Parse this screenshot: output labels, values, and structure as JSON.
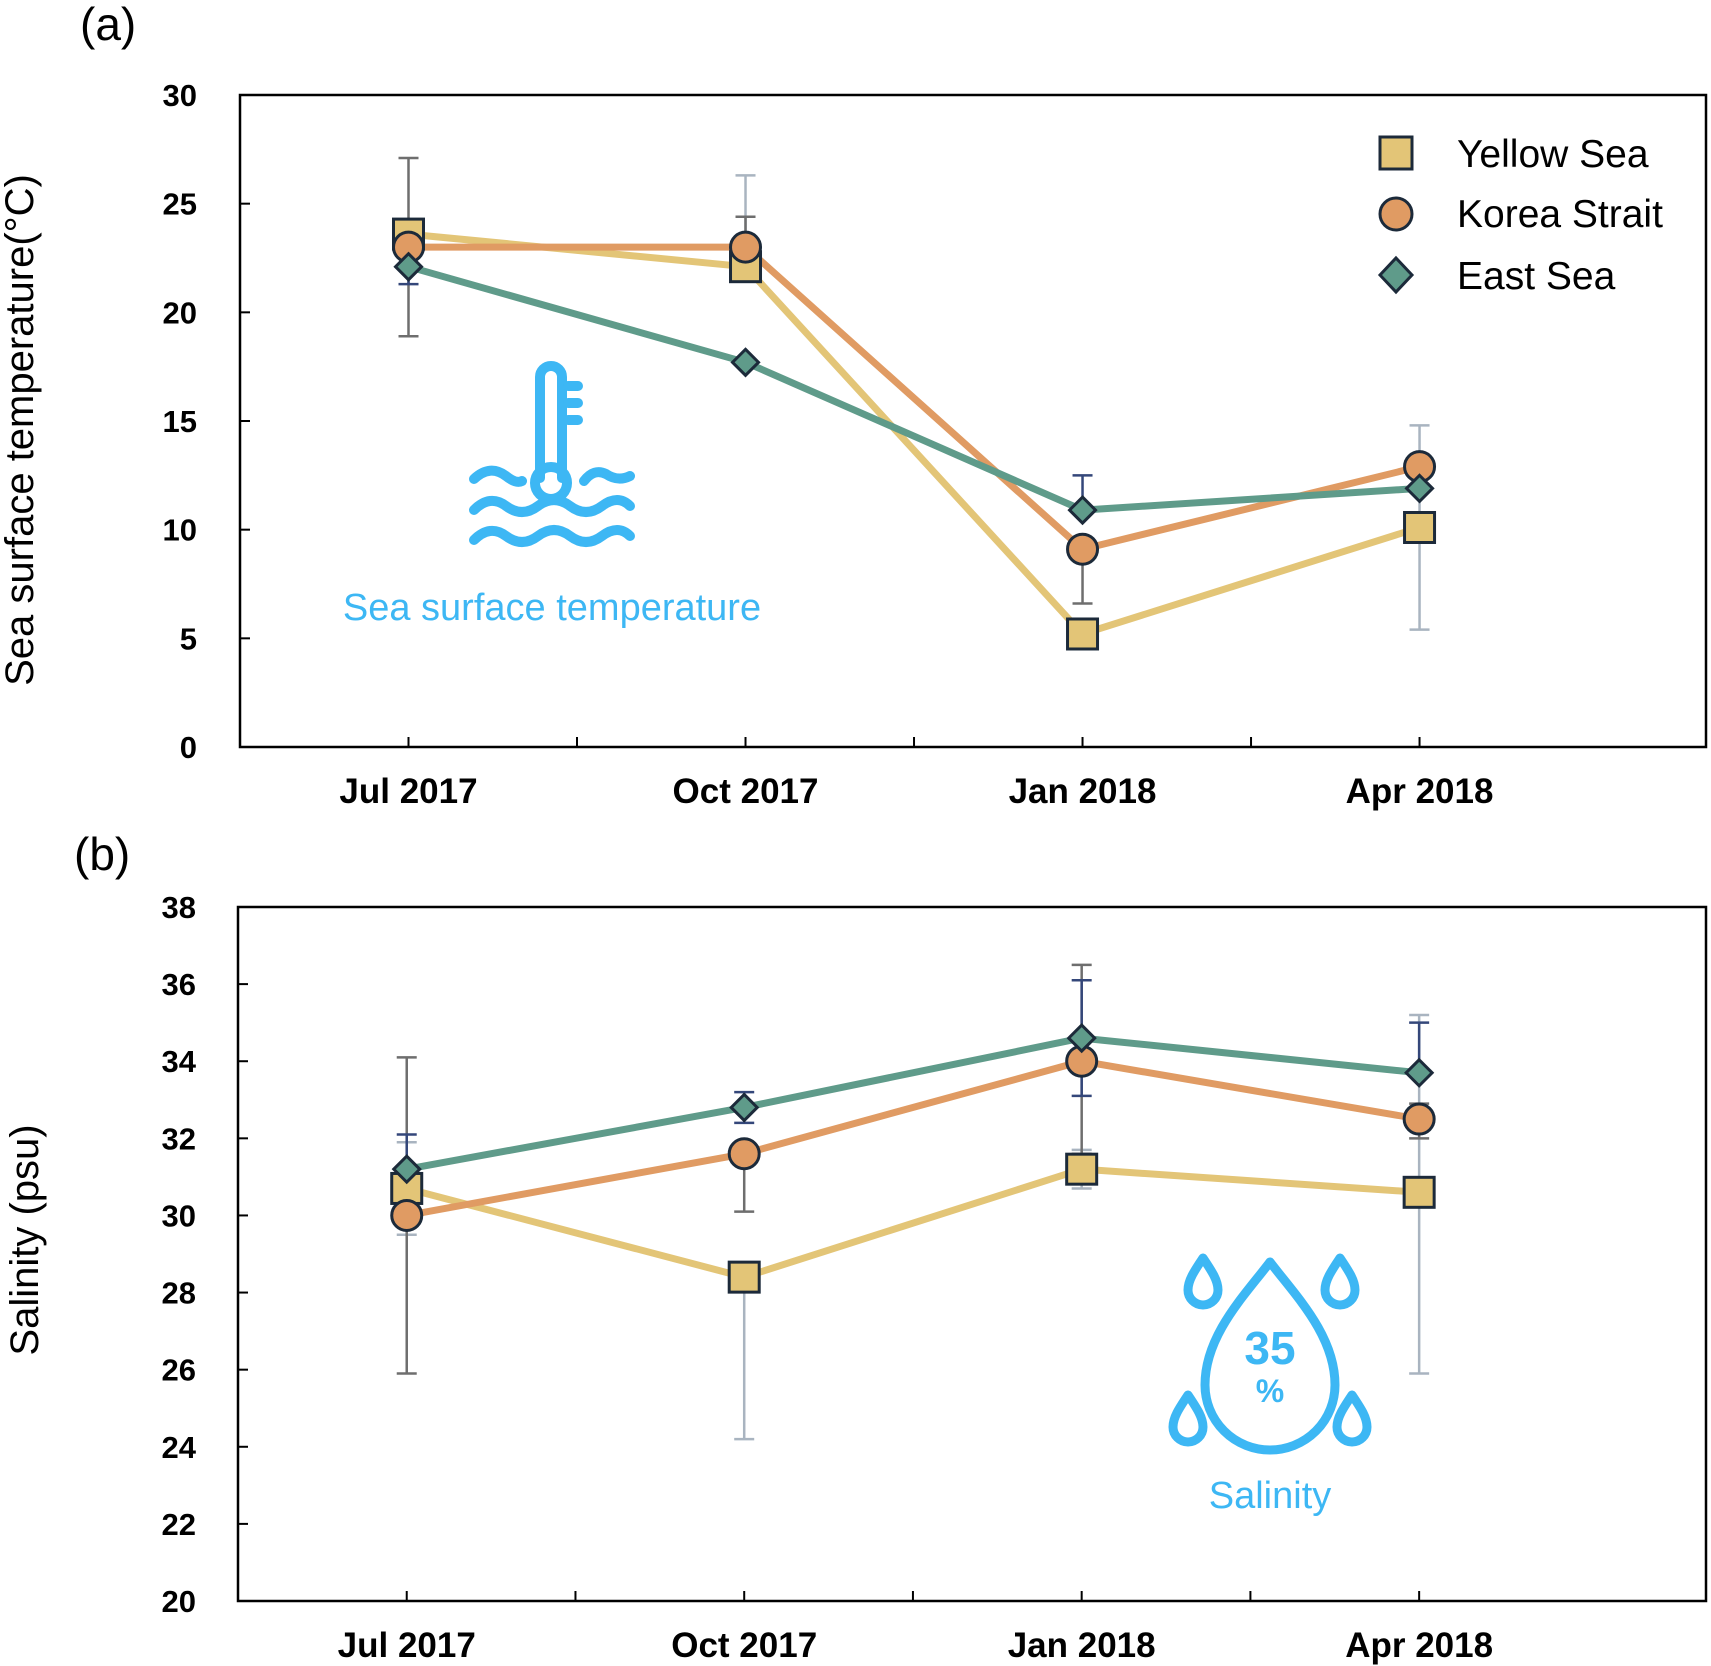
{
  "colors": {
    "yellow_sea": "#E3C577",
    "korea_strait": "#E09B63",
    "east_sea": "#5F9B8A",
    "marker_edge": "#1C2A3A",
    "icon_blue": "#3DB7F4",
    "err_yellow": "#A9B4C0",
    "err_korea": "#6E6E6E",
    "err_east": "#34477A"
  },
  "chart_data": [
    {
      "type": "line",
      "panel": "(a)",
      "title": "",
      "xlabel": "",
      "ylabel": "Sea surface temperature(°C)",
      "ylim": [
        0,
        30
      ],
      "yticks": [
        "0",
        "5",
        "10",
        "15",
        "20",
        "25",
        "30"
      ],
      "categories": [
        "Jul 2017",
        "Oct 2017",
        "Jan 2018",
        "Apr 2018"
      ],
      "annotation": "Sea surface temperature",
      "icon": "thermometer-water-icon",
      "series": [
        {
          "name": "Yellow Sea",
          "key": "yellow_sea",
          "marker": "square",
          "values": [
            23.6,
            22.1,
            5.2,
            10.1
          ],
          "errors": [
            [
              23.6,
              23.6
            ],
            [
              22.1,
              26.3
            ],
            [
              5.2,
              5.2
            ],
            [
              5.4,
              14.8
            ]
          ]
        },
        {
          "name": "Korea Strait",
          "key": "korea_strait",
          "marker": "circle",
          "values": [
            23.0,
            23.0,
            9.1,
            12.9
          ],
          "errors": [
            [
              18.9,
              27.1
            ],
            [
              23.0,
              24.4
            ],
            [
              6.6,
              9.1
            ],
            [
              12.9,
              12.9
            ]
          ]
        },
        {
          "name": "East Sea",
          "key": "east_sea",
          "marker": "diamond",
          "values": [
            22.1,
            17.7,
            10.9,
            11.9
          ],
          "errors": [
            [
              21.3,
              22.9
            ],
            [
              17.7,
              17.7
            ],
            [
              10.9,
              12.5
            ],
            [
              11.9,
              11.9
            ]
          ]
        }
      ]
    },
    {
      "type": "line",
      "panel": "(b)",
      "title": "",
      "xlabel": "",
      "ylabel": "Salinity (psu)",
      "ylim": [
        20,
        38
      ],
      "yticks": [
        "20",
        "22",
        "24",
        "26",
        "28",
        "30",
        "32",
        "34",
        "36",
        "38"
      ],
      "categories": [
        "Jul 2017",
        "Oct 2017",
        "Jan 2018",
        "Apr 2018"
      ],
      "annotation": "Salinity",
      "icon": "salinity-drop-icon",
      "icon_text": "35",
      "icon_sub": "%",
      "series": [
        {
          "name": "Yellow Sea",
          "key": "yellow_sea",
          "marker": "square",
          "values": [
            30.7,
            28.4,
            31.2,
            30.6
          ],
          "errors": [
            [
              29.5,
              31.9
            ],
            [
              24.2,
              28.4
            ],
            [
              30.7,
              31.7
            ],
            [
              25.9,
              35.2
            ]
          ]
        },
        {
          "name": "Korea Strait",
          "key": "korea_strait",
          "marker": "circle",
          "values": [
            30.0,
            31.6,
            34.0,
            32.5
          ],
          "errors": [
            [
              25.9,
              34.1
            ],
            [
              30.1,
              31.6
            ],
            [
              31.6,
              36.5
            ],
            [
              32.0,
              32.9
            ]
          ]
        },
        {
          "name": "East Sea",
          "key": "east_sea",
          "marker": "diamond",
          "values": [
            31.2,
            32.8,
            34.6,
            33.7
          ],
          "errors": [
            [
              30.3,
              32.1
            ],
            [
              32.4,
              33.2
            ],
            [
              33.1,
              36.1
            ],
            [
              33.7,
              35.0
            ]
          ]
        }
      ]
    }
  ]
}
